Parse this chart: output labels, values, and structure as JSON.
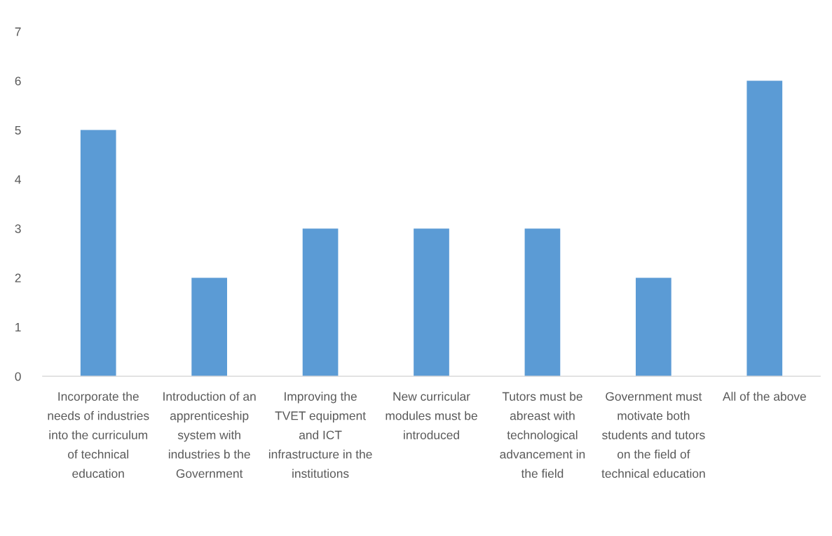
{
  "chart_data": {
    "type": "bar",
    "categories": [
      "Incorporate the needs of industries into the curriculum of technical education",
      "Introduction of an apprenticeship system with industries b the Government",
      "Improving the TVET equipment and ICT infrastructure in the institutions",
      "New curricular modules must be introduced",
      "Tutors must be abreast with technological advancement in the field",
      "Government must motivate both students and tutors on the field of technical education",
      "All of the above"
    ],
    "values": [
      5,
      2,
      3,
      3,
      3,
      2,
      6
    ],
    "color": "#5b9bd5",
    "ylim": [
      0,
      7
    ],
    "yticks": [
      0,
      1,
      2,
      3,
      4,
      5,
      6,
      7
    ]
  }
}
